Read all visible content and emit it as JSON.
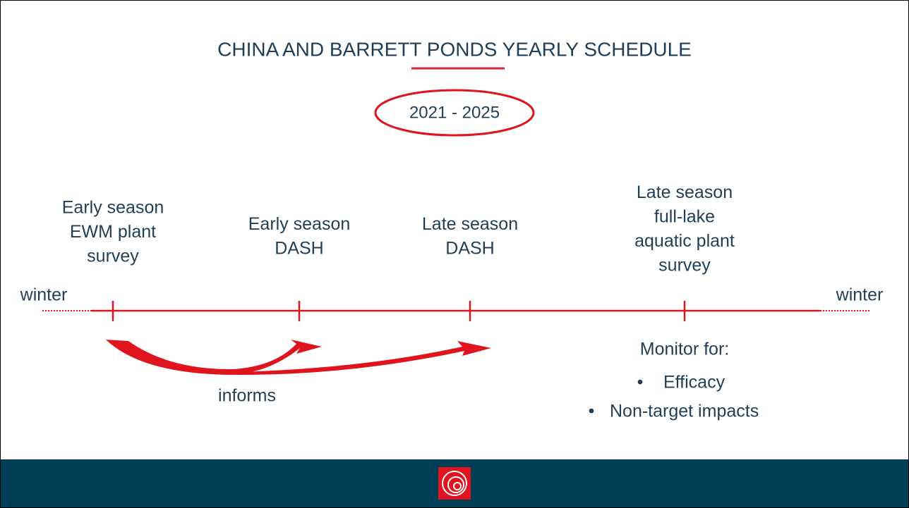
{
  "title": "CHINA AND BARRETT PONDS YEARLY SCHEDULE",
  "years": "2021 - 2025",
  "winter_start": "winter",
  "winter_end": "winter",
  "events": [
    {
      "lines": [
        "Early season",
        "EWM plant",
        "survey"
      ]
    },
    {
      "lines": [
        "Early season",
        "DASH"
      ]
    },
    {
      "lines": [
        "Late season",
        "DASH"
      ]
    },
    {
      "lines": [
        "Late season",
        "full-lake",
        "aquatic plant",
        "survey"
      ]
    }
  ],
  "arrow_label": "informs",
  "monitor": {
    "heading": "Monitor for:",
    "bullets": [
      "Efficacy",
      "Non-target impacts"
    ]
  }
}
